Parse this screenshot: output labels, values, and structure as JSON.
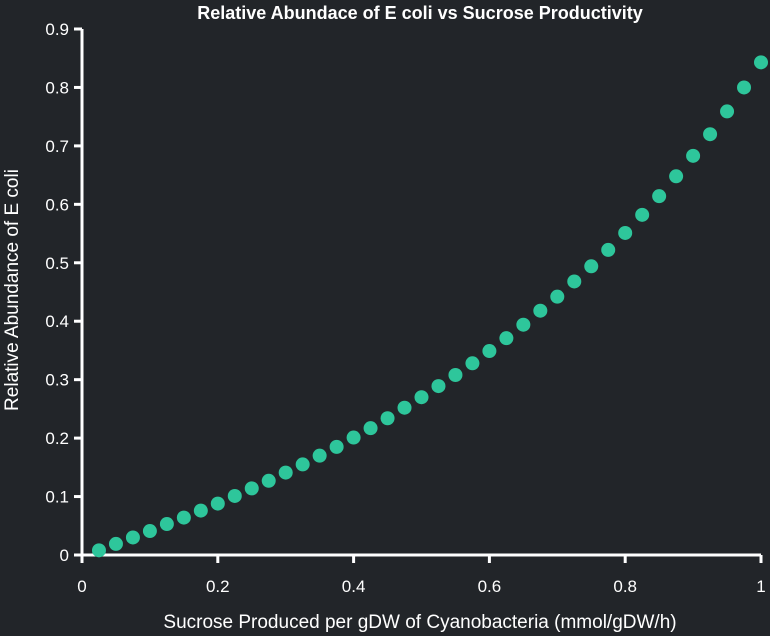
{
  "chart_data": {
    "type": "scatter",
    "title": "Relative Abundace of E coli vs Sucrose Productivity",
    "xlabel": "Sucrose Produced per gDW of Cyanobacteria (mmol/gDW/h)",
    "ylabel": "Relative Abundance of E coli",
    "xlim": [
      0,
      1
    ],
    "ylim": [
      0,
      0.9
    ],
    "xticks": [
      0,
      0.2,
      0.4,
      0.6,
      0.8,
      1
    ],
    "xtick_labels": [
      "0",
      "0.2",
      "0.4",
      "0.6",
      "0.8",
      "1"
    ],
    "yticks": [
      0,
      0.1,
      0.2,
      0.3,
      0.4,
      0.5,
      0.6,
      0.7,
      0.8,
      0.9
    ],
    "ytick_labels": [
      "0",
      "0.1",
      "0.2",
      "0.3",
      "0.4",
      "0.5",
      "0.6",
      "0.7",
      "0.8",
      "0.9"
    ],
    "grid": false,
    "marker_color": "#2ec69b",
    "background_color": "#222529",
    "axis_color": "#ffffff",
    "series": [
      {
        "x": [
          0.025,
          0.05,
          0.075,
          0.1,
          0.125,
          0.15,
          0.175,
          0.2,
          0.225,
          0.25,
          0.275,
          0.3,
          0.325,
          0.35,
          0.375,
          0.4,
          0.425,
          0.45,
          0.475,
          0.5,
          0.525,
          0.55,
          0.575,
          0.6,
          0.625,
          0.65,
          0.675,
          0.7,
          0.725,
          0.75,
          0.775,
          0.8,
          0.825,
          0.85,
          0.875,
          0.9,
          0.925,
          0.95,
          0.975,
          1.0
        ],
        "y": [
          0.008,
          0.019,
          0.03,
          0.041,
          0.053,
          0.064,
          0.076,
          0.088,
          0.101,
          0.114,
          0.127,
          0.141,
          0.155,
          0.17,
          0.185,
          0.201,
          0.217,
          0.234,
          0.252,
          0.27,
          0.289,
          0.308,
          0.328,
          0.349,
          0.371,
          0.394,
          0.418,
          0.442,
          0.468,
          0.494,
          0.522,
          0.551,
          0.582,
          0.614,
          0.648,
          0.683,
          0.72,
          0.759,
          0.8,
          0.843
        ]
      }
    ]
  }
}
